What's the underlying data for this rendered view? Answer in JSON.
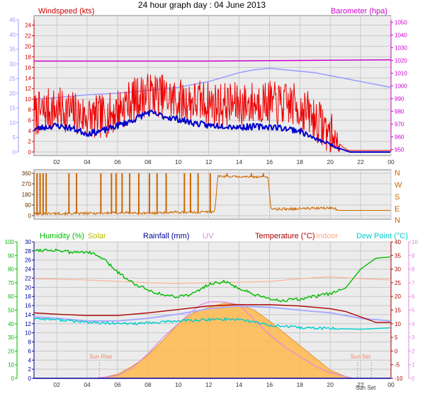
{
  "title": "24 hour graph day : 04 June 2013",
  "colors": {
    "wind": "#ee0000",
    "avgwind": "#0000cc",
    "baro": "#cc00cc",
    "baro_axis": "#cc00cc",
    "wind_axis": "#cc0000",
    "left_axis": "#9999ff",
    "dir": "#cc6600",
    "humidity": "#00bb00",
    "solar": "#bbbb00",
    "rain": "#000099",
    "uv": "#dd88dd",
    "temp": "#aa0000",
    "indoor": "#ffaa88",
    "dew": "#00cccc",
    "solar_fill": "#ffb84d",
    "panel_bg": "#ececec",
    "grid": "#c8c8c8"
  },
  "chart_data": [
    {
      "type": "line",
      "title": "24 hour graph day : 04 June 2013",
      "labels": {
        "left": "Windspeed (kts)",
        "right": "Barometer (hpa)"
      },
      "x_ticks": [
        "02",
        "04",
        "06",
        "08",
        "10",
        "12",
        "14",
        "16",
        "18",
        "20",
        "22",
        "00"
      ],
      "x_range_hours": [
        0.5,
        24
      ],
      "axes": {
        "wind_kts": {
          "range": [
            0,
            25
          ],
          "ticks": [
            0,
            2,
            4,
            6,
            8,
            10,
            12,
            14,
            16,
            18,
            20,
            22,
            24
          ]
        },
        "left_outer": {
          "range": [
            0,
            45
          ],
          "ticks": [
            0,
            5,
            10,
            15,
            20,
            25,
            30,
            35,
            40,
            45
          ]
        },
        "barometer_hpa": {
          "range": [
            948,
            1052
          ],
          "ticks": [
            950,
            960,
            970,
            980,
            990,
            1000,
            1010,
            1020,
            1030,
            1040,
            1050
          ]
        }
      },
      "series": [
        {
          "name": "Barometer (hpa)",
          "axis": "barometer_hpa",
          "x": [
            0.5,
            6,
            12,
            18,
            24
          ],
          "y": [
            1019.5,
            1019.5,
            1019.5,
            1020,
            1020.5
          ]
        },
        {
          "name": "Windspeed (kts)",
          "axis": "wind_kts",
          "style": "noisy",
          "x": [
            0.5,
            1.5,
            2.5,
            3.5,
            4.5,
            5.5,
            6.5,
            7.5,
            8.5,
            9.5,
            10.5,
            11.5,
            12.5,
            13.5,
            14.5,
            15.5,
            16.5,
            17.5,
            18.5,
            19.5,
            20.3,
            20.8,
            21.2,
            22,
            23,
            24
          ],
          "y": [
            7,
            8,
            8,
            7,
            6.5,
            7,
            9,
            10.5,
            11,
            10,
            9.5,
            9.5,
            9,
            9,
            9,
            9.5,
            9,
            9,
            7.5,
            5,
            2.5,
            1,
            0.3,
            0.3,
            0.3,
            0.3
          ]
        },
        {
          "x": [
            0.5,
            1,
            2,
            3,
            4,
            5,
            6,
            7,
            8,
            9,
            10,
            11,
            12,
            13,
            14,
            15,
            16,
            17,
            18,
            19,
            20,
            20.8,
            21.3,
            24
          ],
          "y": [
            4.3,
            4.6,
            5,
            4.5,
            3.5,
            4,
            5,
            6,
            7.5,
            6.8,
            6.2,
            5.5,
            5,
            5,
            4.7,
            4.8,
            4.8,
            4.5,
            4,
            2.5,
            1.5,
            0.5,
            0,
            0
          ]
        },
        {
          "axis": "left_outer",
          "x": [
            0.5,
            2,
            4,
            6,
            8,
            10,
            12,
            14,
            15,
            16,
            17,
            18,
            19,
            20,
            21,
            22,
            23,
            24
          ],
          "y": [
            18,
            18.5,
            19.5,
            20,
            21,
            22,
            24,
            27,
            28,
            28.5,
            28,
            27.5,
            27,
            26,
            25,
            24,
            23,
            22
          ]
        }
      ]
    },
    {
      "type": "line",
      "labels": {
        "right": [
          "N",
          "W",
          "S",
          "E",
          "N"
        ]
      },
      "axes": {
        "direction_deg": {
          "range": [
            0,
            360
          ],
          "ticks": [
            0,
            90,
            180,
            270,
            360
          ]
        }
      },
      "series": [
        {
          "name": "Wind direction",
          "x": [
            0.5,
            2,
            3.5,
            5,
            6.5,
            8,
            9.5,
            11,
            12.4,
            12.6,
            14,
            15.9,
            16.1,
            18,
            19,
            20.3,
            20.5,
            24
          ],
          "y": [
            15,
            20,
            18,
            22,
            25,
            20,
            30,
            28,
            35,
            335,
            330,
            330,
            55,
            60,
            62,
            65,
            45,
            45
          ],
          "spikes_to_360_at_hours": [
            0.7,
            0.9,
            1.1,
            1.3,
            2.8,
            3.3,
            4.9,
            5.6,
            5.9,
            6.3,
            6.8,
            7.4,
            8.1,
            8.6,
            9.2,
            10.4,
            10.8,
            11.3,
            12.1,
            13.2,
            14.8,
            15.6
          ]
        }
      ]
    },
    {
      "type": "line",
      "legend": [
        "Humidity (%)",
        "Solar",
        "Rainfall (mm)",
        "UV",
        "Temperature (°C)",
        "Indoor",
        "Dew Point (°C)"
      ],
      "x_ticks": [
        "02",
        "04",
        "06",
        "08",
        "10",
        "12",
        "14",
        "16",
        "18",
        "20",
        "22",
        "00"
      ],
      "annotations": [
        {
          "text": "Sun Rise",
          "hour": 4.8
        },
        {
          "text": "Sun Set",
          "hour": 21.8
        },
        {
          "text": "Sun Set",
          "hour": 22.7
        }
      ],
      "axes": {
        "humidity_pct": {
          "range": [
            0,
            100
          ],
          "ticks": [
            0,
            10,
            20,
            30,
            40,
            50,
            60,
            70,
            80,
            90,
            100
          ]
        },
        "rain_mm": {
          "range": [
            0,
            30
          ],
          "ticks": [
            0,
            2,
            4,
            6,
            8,
            10,
            12,
            14,
            16,
            18,
            20,
            22,
            24,
            26,
            28,
            30
          ]
        },
        "temperature_c": {
          "range": [
            -10,
            40
          ],
          "ticks": [
            -10,
            -5,
            0,
            5,
            10,
            15,
            20,
            25,
            30,
            35,
            40
          ]
        },
        "uv_index": {
          "range": [
            0,
            10
          ],
          "ticks": [
            0,
            1,
            2,
            3,
            4,
            5,
            6,
            7,
            8,
            9,
            10
          ]
        }
      },
      "series": [
        {
          "name": "Humidity (%)",
          "axis": "humidity_pct",
          "x": [
            0.5,
            2,
            3,
            4,
            5,
            6,
            7,
            8,
            9,
            10,
            11,
            12,
            13,
            14,
            15,
            16,
            17,
            18,
            19,
            20,
            21,
            22,
            23,
            24
          ],
          "y": [
            94,
            94,
            92,
            93,
            88,
            78,
            70,
            65,
            61,
            60,
            62,
            69,
            71,
            66,
            61,
            58,
            57,
            58,
            60,
            62,
            66,
            80,
            88,
            89
          ]
        },
        {
          "name": "Indoor",
          "axis": "temperature_c",
          "x": [
            0.5,
            4,
            8,
            10,
            12,
            14,
            16,
            18,
            20,
            22,
            24
          ],
          "y": [
            26.5,
            26,
            25,
            24.8,
            25,
            25.2,
            25.5,
            26.5,
            27.2,
            26.5,
            26
          ]
        },
        {
          "name": "Temperature (°C)",
          "axis": "temperature_c",
          "x": [
            0.5,
            2,
            4,
            6,
            8,
            10,
            12,
            14,
            16,
            18,
            20,
            21,
            22,
            23,
            24
          ],
          "y": [
            14,
            13.5,
            13,
            13,
            14,
            15.2,
            16.5,
            17,
            17,
            16.5,
            15.5,
            14.5,
            12.5,
            10.5,
            10.5
          ]
        },
        {
          "name": "Rainfall (mm)",
          "axis": "rain_mm",
          "x": [
            0.5,
            24
          ],
          "y": [
            0,
            0
          ]
        },
        {
          "name": "Dew Point (°C)",
          "axis": "temperature_c",
          "x": [
            0.5,
            2,
            4,
            6,
            8,
            10,
            12,
            14,
            16,
            18,
            20,
            22,
            24
          ],
          "y": [
            12,
            11.5,
            10.5,
            10,
            10.2,
            11,
            11.5,
            11.7,
            9.5,
            8.5,
            8.3,
            8,
            8.5
          ]
        },
        {
          "axis": "temperature_c",
          "x": [
            0.5,
            2,
            4,
            6,
            8,
            10,
            12,
            14,
            16,
            18,
            20,
            22,
            24
          ],
          "y": [
            12.5,
            12,
            11,
            11,
            12,
            13.5,
            15.5,
            16.5,
            16,
            15,
            14,
            12,
            11
          ]
        },
        {
          "name": "UV",
          "axis": "uv_index",
          "x": [
            4.5,
            6,
            7,
            8,
            9,
            10,
            11,
            11.5,
            12,
            13,
            14,
            15,
            16,
            17,
            18,
            19,
            20,
            21.5
          ],
          "y": [
            0,
            0.2,
            0.8,
            1.8,
            3,
            4,
            5,
            5.4,
            5.6,
            5.6,
            5.4,
            4.3,
            3.2,
            2.3,
            1.6,
            0.9,
            0.4,
            0
          ]
        },
        {
          "name": "Solar",
          "axis": "uv_index",
          "x": [
            4.8,
            6,
            7,
            8,
            9,
            10,
            11,
            12,
            13,
            14,
            15,
            16,
            17,
            18,
            19,
            20,
            21.3
          ],
          "y": [
            0,
            0.3,
            0.9,
            1.7,
            2.8,
            4,
            4.8,
            5.2,
            5.5,
            5.4,
            5,
            4.2,
            3.3,
            2.4,
            1.5,
            0.6,
            0
          ]
        }
      ]
    }
  ]
}
